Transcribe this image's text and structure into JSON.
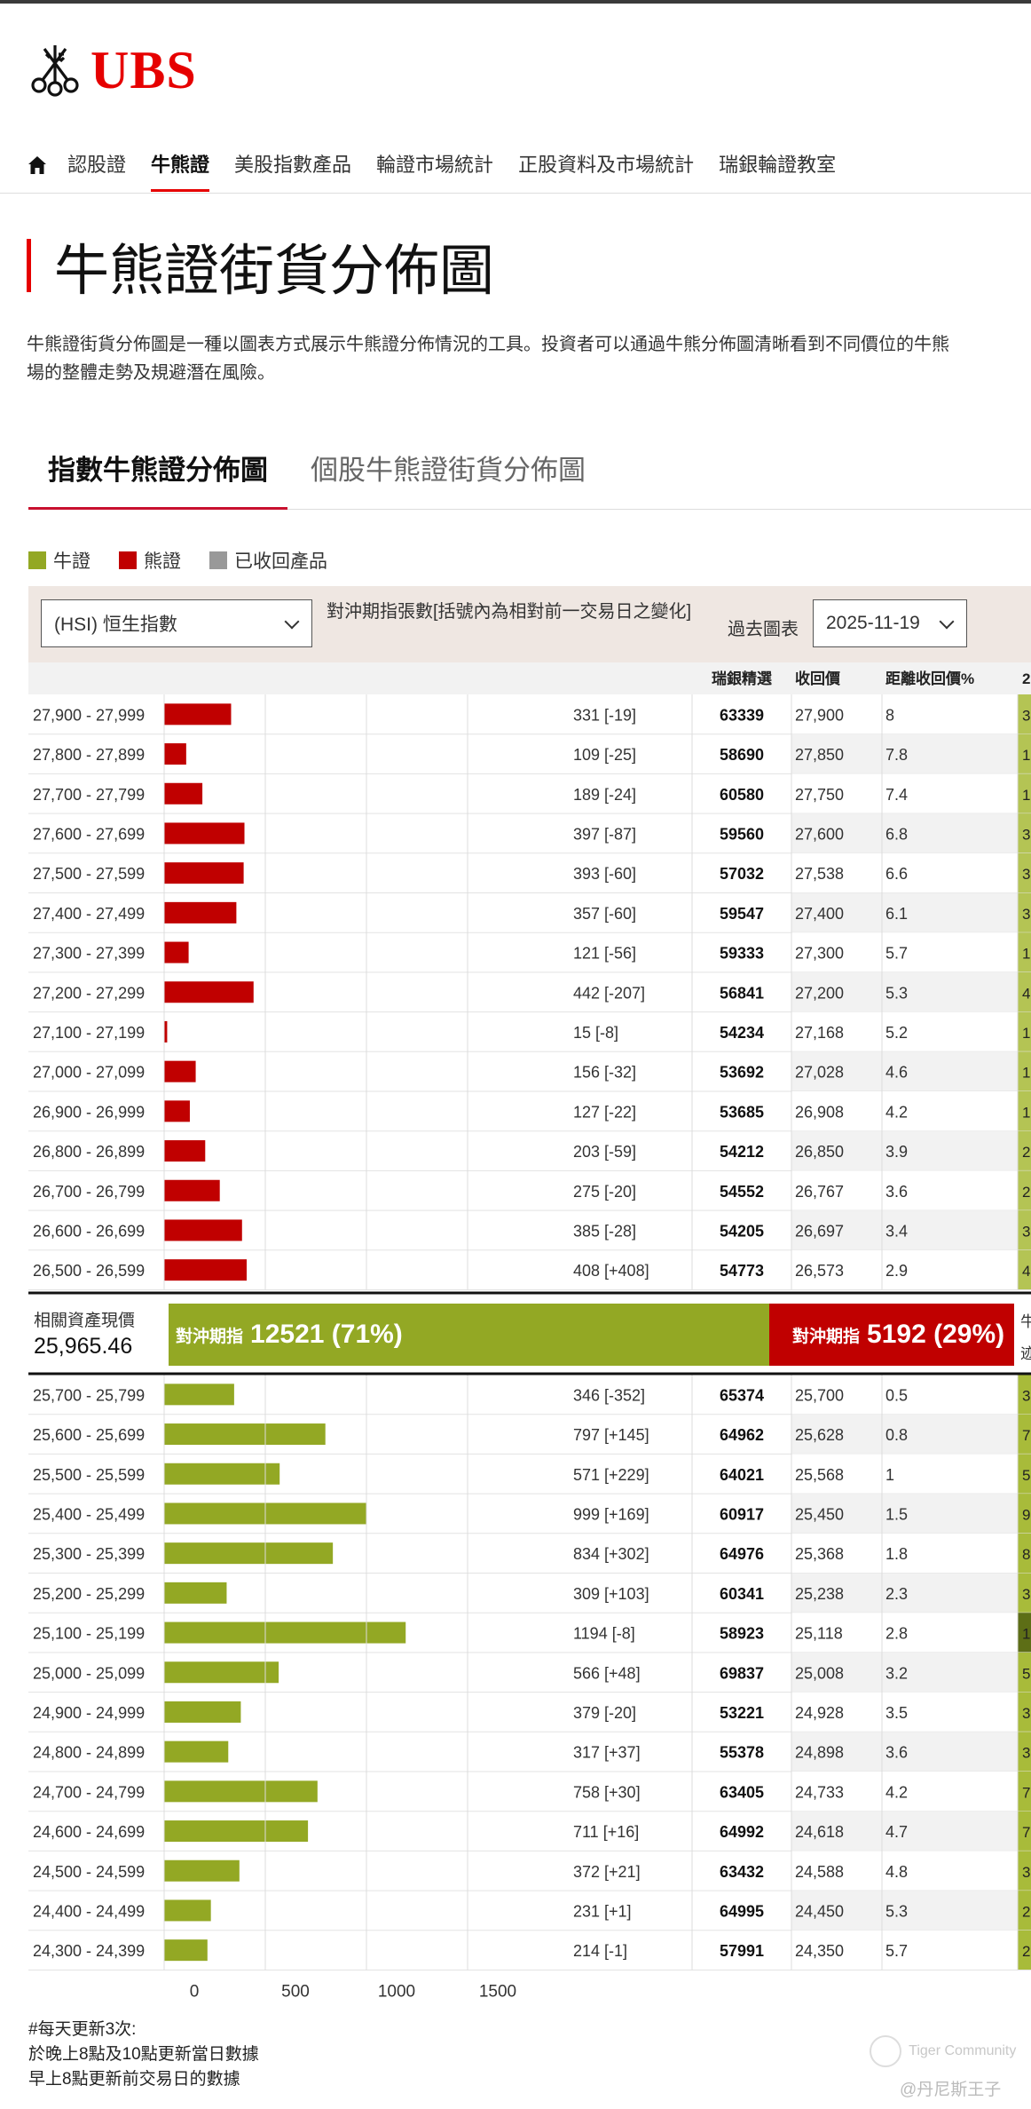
{
  "brand": {
    "name": "UBS"
  },
  "nav": {
    "items": [
      {
        "label": "認股證",
        "active": false
      },
      {
        "label": "牛熊證",
        "active": true
      },
      {
        "label": "美股指數產品",
        "active": false
      },
      {
        "label": "輪證市場統計",
        "active": false
      },
      {
        "label": "正股資料及市場統計",
        "active": false
      },
      {
        "label": "瑞銀輪證教室",
        "active": false
      }
    ]
  },
  "page": {
    "title": "牛熊證街貨分佈圖",
    "intro_line1": "牛熊證街貨分佈圖是一種以圖表方式展示牛熊證分佈情況的工具。投資者可以通過牛熊分佈圖清晰看到不同價位的牛熊",
    "intro_line2": "場的整體走勢及規避潛在風險。"
  },
  "tabs": [
    {
      "label": "指數牛熊證分佈圖",
      "active": true
    },
    {
      "label": "個股牛熊證街貨分佈圖",
      "active": false
    }
  ],
  "legend": [
    {
      "label": "牛證",
      "color": "#93a824"
    },
    {
      "label": "熊證",
      "color": "#c00000"
    },
    {
      "label": "已收回產品",
      "color": "#999999"
    }
  ],
  "controls": {
    "underlying_select": "(HSI) 恒生指數",
    "hedge_note": "對沖期指張數[括號內為相對前一交易日之變化]",
    "past_chart_label": "過去圖表",
    "date_select": "2025-11-19"
  },
  "table_headers": {
    "pick": "瑞銀精選",
    "call_price": "收回價",
    "distance": "距離收回價%",
    "extra": "2"
  },
  "chart_data": {
    "type": "bar",
    "orientation": "horizontal",
    "xaxis_ticks": [
      0,
      500,
      1000,
      1500
    ],
    "xlim": [
      0,
      1600
    ],
    "bear_rows": [
      {
        "range": "27,900 - 27,999",
        "value": 331,
        "change": "[-19]",
        "pick": "63339",
        "call_price": "27,900",
        "distance": "8",
        "extra": "3"
      },
      {
        "range": "27,800 - 27,899",
        "value": 109,
        "change": "[-25]",
        "pick": "58690",
        "call_price": "27,850",
        "distance": "7.8",
        "extra": "1"
      },
      {
        "range": "27,700 - 27,799",
        "value": 189,
        "change": "[-24]",
        "pick": "60580",
        "call_price": "27,750",
        "distance": "7.4",
        "extra": "1"
      },
      {
        "range": "27,600 - 27,699",
        "value": 397,
        "change": "[-87]",
        "pick": "59560",
        "call_price": "27,600",
        "distance": "6.8",
        "extra": "3"
      },
      {
        "range": "27,500 - 27,599",
        "value": 393,
        "change": "[-60]",
        "pick": "57032",
        "call_price": "27,538",
        "distance": "6.6",
        "extra": "3"
      },
      {
        "range": "27,400 - 27,499",
        "value": 357,
        "change": "[-60]",
        "pick": "59547",
        "call_price": "27,400",
        "distance": "6.1",
        "extra": "3"
      },
      {
        "range": "27,300 - 27,399",
        "value": 121,
        "change": "[-56]",
        "pick": "59333",
        "call_price": "27,300",
        "distance": "5.7",
        "extra": "1"
      },
      {
        "range": "27,200 - 27,299",
        "value": 442,
        "change": "[-207]",
        "pick": "56841",
        "call_price": "27,200",
        "distance": "5.3",
        "extra": "4"
      },
      {
        "range": "27,100 - 27,199",
        "value": 15,
        "change": "[-8]",
        "pick": "54234",
        "call_price": "27,168",
        "distance": "5.2",
        "extra": "1"
      },
      {
        "range": "27,000 - 27,099",
        "value": 156,
        "change": "[-32]",
        "pick": "53692",
        "call_price": "27,028",
        "distance": "4.6",
        "extra": "1"
      },
      {
        "range": "26,900 - 26,999",
        "value": 127,
        "change": "[-22]",
        "pick": "53685",
        "call_price": "26,908",
        "distance": "4.2",
        "extra": "1"
      },
      {
        "range": "26,800 - 26,899",
        "value": 203,
        "change": "[-59]",
        "pick": "54212",
        "call_price": "26,850",
        "distance": "3.9",
        "extra": "2"
      },
      {
        "range": "26,700 - 26,799",
        "value": 275,
        "change": "[-20]",
        "pick": "54552",
        "call_price": "26,767",
        "distance": "3.6",
        "extra": "2"
      },
      {
        "range": "26,600 - 26,699",
        "value": 385,
        "change": "[-28]",
        "pick": "54205",
        "call_price": "26,697",
        "distance": "3.4",
        "extra": "3"
      },
      {
        "range": "26,500 - 26,599",
        "value": 408,
        "change": "[+408]",
        "pick": "54773",
        "call_price": "26,573",
        "distance": "2.9",
        "extra": "4"
      }
    ],
    "bull_rows": [
      {
        "range": "25,700 - 25,799",
        "value": 346,
        "change": "[-352]",
        "pick": "65374",
        "call_price": "25,700",
        "distance": "0.5",
        "extra": "3"
      },
      {
        "range": "25,600 - 25,699",
        "value": 797,
        "change": "[+145]",
        "pick": "64962",
        "call_price": "25,628",
        "distance": "0.8",
        "extra": "7"
      },
      {
        "range": "25,500 - 25,599",
        "value": 571,
        "change": "[+229]",
        "pick": "64021",
        "call_price": "25,568",
        "distance": "1",
        "extra": "5"
      },
      {
        "range": "25,400 - 25,499",
        "value": 999,
        "change": "[+169]",
        "pick": "60917",
        "call_price": "25,450",
        "distance": "1.5",
        "extra": "9"
      },
      {
        "range": "25,300 - 25,399",
        "value": 834,
        "change": "[+302]",
        "pick": "64976",
        "call_price": "25,368",
        "distance": "1.8",
        "extra": "8"
      },
      {
        "range": "25,200 - 25,299",
        "value": 309,
        "change": "[+103]",
        "pick": "60341",
        "call_price": "25,238",
        "distance": "2.3",
        "extra": "3"
      },
      {
        "range": "25,100 - 25,199",
        "value": 1194,
        "change": "[-8]",
        "pick": "58923",
        "call_price": "25,118",
        "distance": "2.8",
        "extra": "1"
      },
      {
        "range": "25,000 - 25,099",
        "value": 566,
        "change": "[+48]",
        "pick": "69837",
        "call_price": "25,008",
        "distance": "3.2",
        "extra": "5"
      },
      {
        "range": "24,900 - 24,999",
        "value": 379,
        "change": "[-20]",
        "pick": "53221",
        "call_price": "24,928",
        "distance": "3.5",
        "extra": "3"
      },
      {
        "range": "24,800 - 24,899",
        "value": 317,
        "change": "[+37]",
        "pick": "55378",
        "call_price": "24,898",
        "distance": "3.6",
        "extra": "3"
      },
      {
        "range": "24,700 - 24,799",
        "value": 758,
        "change": "[+30]",
        "pick": "63405",
        "call_price": "24,733",
        "distance": "4.2",
        "extra": "7"
      },
      {
        "range": "24,600 - 24,699",
        "value": 711,
        "change": "[+16]",
        "pick": "64992",
        "call_price": "24,618",
        "distance": "4.7",
        "extra": "7"
      },
      {
        "range": "24,500 - 24,599",
        "value": 372,
        "change": "[+21]",
        "pick": "63432",
        "call_price": "24,588",
        "distance": "4.8",
        "extra": "3"
      },
      {
        "range": "24,400 - 24,499",
        "value": 231,
        "change": "[+1]",
        "pick": "64995",
        "call_price": "24,450",
        "distance": "5.3",
        "extra": "2"
      },
      {
        "range": "24,300 - 24,399",
        "value": 214,
        "change": "[-1]",
        "pick": "57991",
        "call_price": "24,350",
        "distance": "5.7",
        "extra": "2"
      }
    ],
    "colors": {
      "bull": "#93a824",
      "bear": "#c00000",
      "recalled": "#999999"
    }
  },
  "summary": {
    "asset_label": "相關資產現價",
    "asset_value": "25,965.46",
    "bull_label": "對沖期指",
    "bull_value": "12521 (71%)",
    "bear_label": "對沖期指",
    "bear_value": "5192 (29%)",
    "right_top": "牛",
    "right_bottom": "迹",
    "bull_fraction": 0.71
  },
  "notes": [
    "#每天更新3次:",
    "於晚上8點及10點更新當日數據",
    "早上8點更新前交易日的數據"
  ],
  "watermark": {
    "brand": "Tiger Community",
    "user": "@丹尼斯王子"
  }
}
